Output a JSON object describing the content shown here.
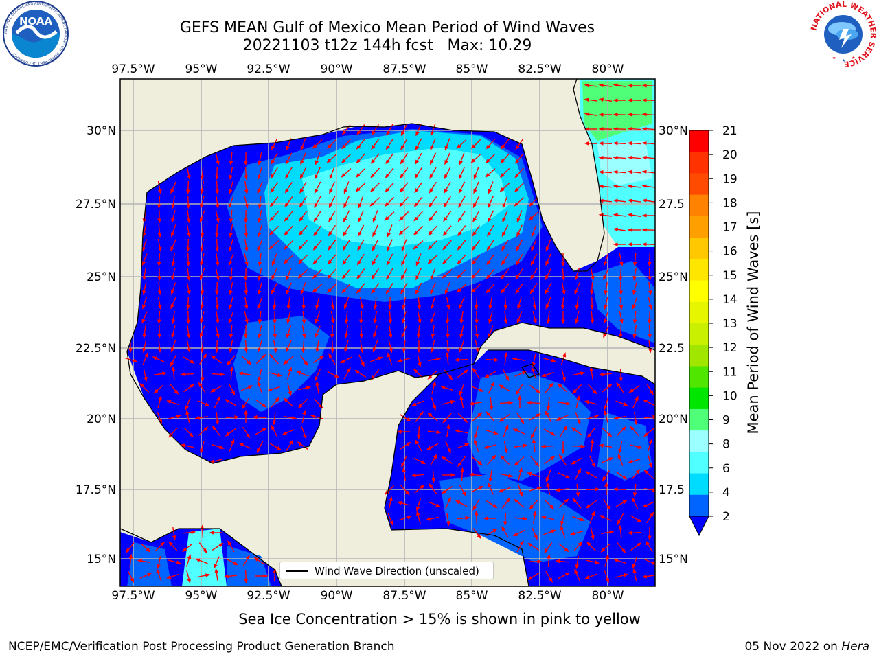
{
  "header": {
    "title_line1": "GEFS MEAN Gulf of Mexico Mean Period of Wind Waves",
    "title_line2": "20221103 t12z 144h fcst   Max: 10.29"
  },
  "logos": {
    "left": {
      "name": "NOAA",
      "text": "NOAA",
      "ring_text": "NATIONAL OCEANIC AND ATMOSPHERIC ADMINISTRATION · U.S. DEPARTMENT OF COMMERCE"
    },
    "right": {
      "name": "National Weather Service",
      "ring_text": "NATIONAL WEATHER SERVICE"
    }
  },
  "map": {
    "lon_labels": [
      "97.5°W",
      "95°W",
      "92.5°W",
      "90°W",
      "87.5°W",
      "85°W",
      "82.5°W",
      "80°W"
    ],
    "lat_labels": [
      "30°N",
      "27.5°N",
      "25°N",
      "22.5°N",
      "20°N",
      "17.5°N",
      "15°N"
    ],
    "right_lat_labels": [
      "30°N",
      "27.5",
      "25°N",
      "22.5",
      "20°N",
      "17.5",
      "15°N"
    ],
    "colors": {
      "land": "#efeedd",
      "grid": "#b4b4b4",
      "arrow": "#ff0000",
      "coast": "#000000"
    }
  },
  "colorbar": {
    "title": "Mean Period of Wind Waves [s]",
    "ticks": [
      "2",
      "4",
      "6",
      "8",
      "9",
      "10",
      "11",
      "12",
      "13",
      "14",
      "15",
      "16",
      "17",
      "18",
      "19",
      "20",
      "21"
    ],
    "colors": [
      "#0064ff",
      "#00dcff",
      "#50ffff",
      "#9bffff",
      "#50ff78",
      "#00e600",
      "#50e600",
      "#a0e600",
      "#c8f000",
      "#e6f500",
      "#ffff00",
      "#ffe600",
      "#ffc800",
      "#ffa000",
      "#ff8200",
      "#ff4b00",
      "#ff3200",
      "#ff0000"
    ],
    "under_color": "#0000ff"
  },
  "legend": {
    "label": "Wind Wave Direction (unscaled)"
  },
  "notes": {
    "sea_ice": "Sea Ice Concentration > 15% is shown in pink to yellow"
  },
  "footer": {
    "left": "NCEP/EMC/Verification Post Processing Product Generation Branch",
    "right_date": "05 Nov 2022 on",
    "right_machine": "Hera"
  }
}
